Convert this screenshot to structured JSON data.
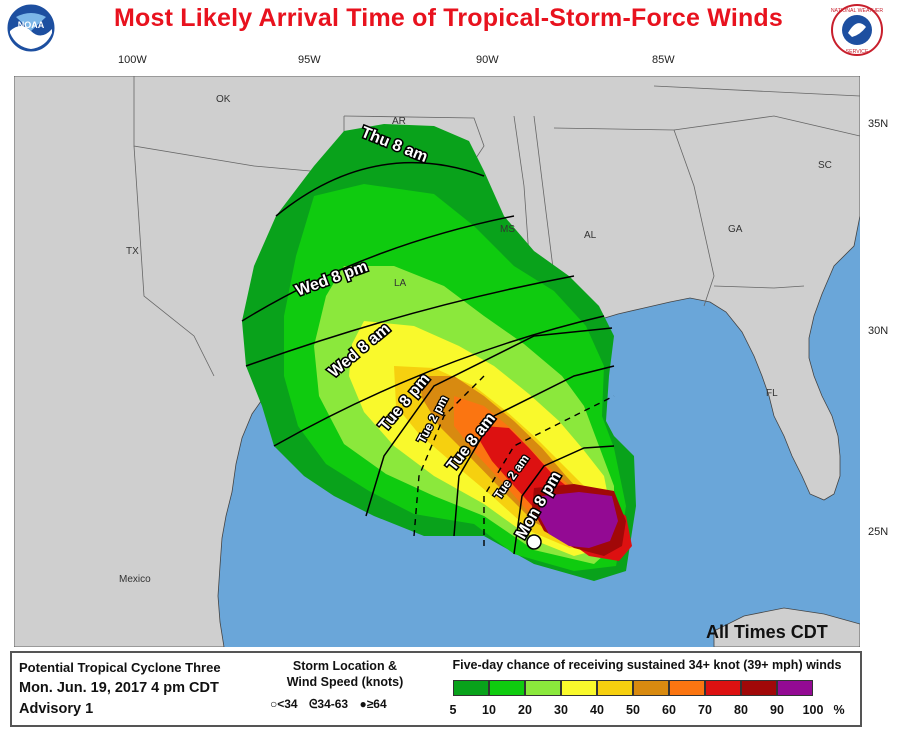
{
  "header": {
    "title": "Most Likely Arrival Time of Tropical-Storm-Force Winds",
    "left_logo_text": "NOAA",
    "right_logo_text": "NATIONAL WEATHER SERVICE"
  },
  "axes": {
    "longitudes": [
      "100W",
      "95W",
      "90W",
      "85W"
    ],
    "latitudes": [
      "35N",
      "30N",
      "25N"
    ]
  },
  "map": {
    "state_labels": [
      "OK",
      "AR",
      "TX",
      "LA",
      "MS",
      "AL",
      "GA",
      "SC",
      "FL"
    ],
    "country_labels": [
      "Mexico"
    ],
    "isochrone_labels": [
      "Thu 8 am",
      "Wed 8 pm",
      "Wed 8 am",
      "Tue 8 pm",
      "Tue 2 pm",
      "Tue 8 am",
      "Tue 2 am",
      "Mon 8 pm"
    ],
    "footer_note": "All Times CDT"
  },
  "legend": {
    "storm_name": "Potential Tropical Cyclone Three",
    "datetime": "Mon. Jun. 19, 2017  4 pm CDT",
    "advisory": "Advisory 1",
    "storm_location_title_1": "Storm Location &",
    "storm_location_title_2": "Wind Speed (knots)",
    "storm_key": [
      "<34",
      "34-63",
      "≥64"
    ],
    "probability_title": "Five-day chance of receiving sustained 34+ knot (39+ mph) winds",
    "ticks": [
      "5",
      "10",
      "20",
      "30",
      "40",
      "50",
      "60",
      "70",
      "80",
      "90",
      "100"
    ],
    "unit": "%",
    "colors": [
      "#09a21b",
      "#0fcb0f",
      "#8be83c",
      "#f9f92c",
      "#f6d00f",
      "#d88a10",
      "#fb7511",
      "#dd1111",
      "#a10808",
      "#930a93"
    ]
  }
}
